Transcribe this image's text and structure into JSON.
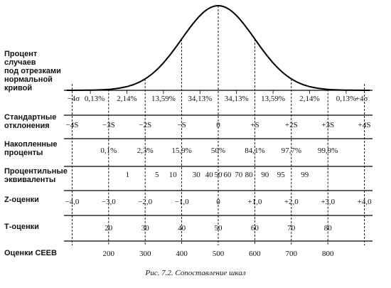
{
  "rows": {
    "percent_under_curve": {
      "label_lines": [
        "Процент",
        "случаев",
        "под отрезками",
        "нормальной",
        "кривой"
      ],
      "end_left": "−4σ",
      "end_right": "+4σ",
      "segments": [
        "0,13%",
        "2,14%",
        "13,59%",
        "34,13%",
        "34,13%",
        "13,59%",
        "2,14%",
        "0,13%"
      ]
    },
    "standard_deviations": {
      "label_lines": [
        "Стандартные",
        "отклонения"
      ],
      "values": [
        "−4S",
        "−3S",
        "−2S",
        "−S",
        "0",
        "+S",
        "+2S",
        "+3S",
        "+4S"
      ]
    },
    "cumulative_percents": {
      "label_lines": [
        "Накопленные",
        "проценты"
      ],
      "values": [
        "0,1%",
        "2,3%",
        "15,9%",
        "50%",
        "84,1%",
        "97,7%",
        "99,9%"
      ]
    },
    "percentile_equivalents": {
      "label_lines": [
        "Процентильные",
        "эквиваленты"
      ],
      "values": [
        "1",
        "5",
        "10",
        "30",
        "40",
        "50",
        "60",
        "70",
        "80",
        "90",
        "95",
        "99"
      ]
    },
    "z_scores": {
      "label_lines": [
        "Z-оценки"
      ],
      "values": [
        "−4,0",
        "−3,0",
        "−2,0",
        "−1,0",
        "0",
        "+1,0",
        "+2,0",
        "+3,0",
        "+4,0"
      ]
    },
    "t_scores": {
      "label_lines": [
        "Т-оценки"
      ],
      "values": [
        "20",
        "30",
        "40",
        "50",
        "60",
        "70",
        "80"
      ]
    },
    "ceeb_scores": {
      "label_lines": [
        "Оценки СЕЕВ"
      ],
      "values": [
        "200",
        "300",
        "400",
        "500",
        "600",
        "700",
        "800"
      ]
    }
  },
  "caption": "Рис. 7.2. Сопоставление шкал"
}
